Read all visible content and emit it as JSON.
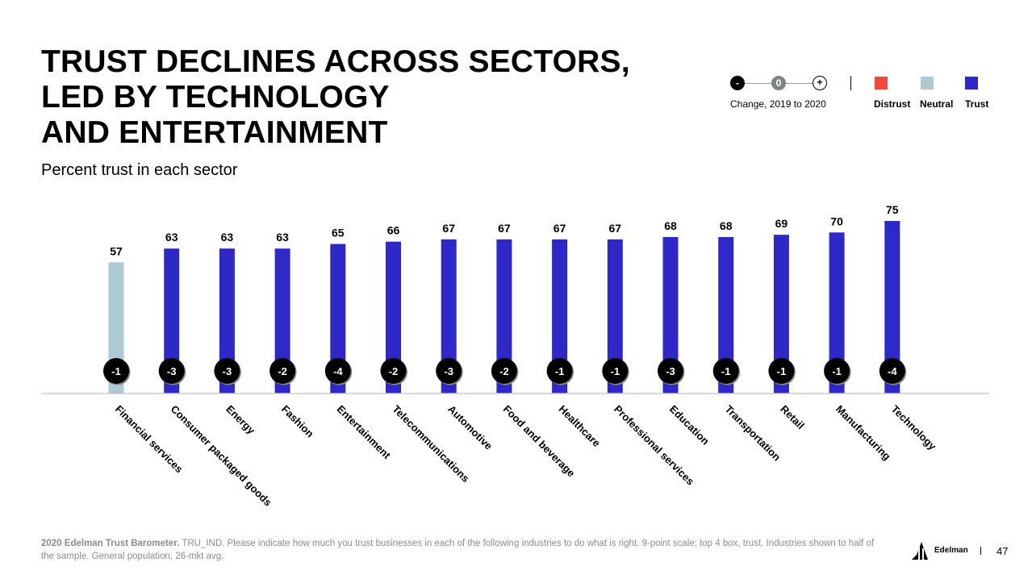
{
  "header": {
    "title_lines": [
      "TRUST DECLINES ACROSS SECTORS,",
      "LED BY TECHNOLOGY",
      "AND ENTERTAINMENT"
    ],
    "subtitle": "Percent trust in each sector"
  },
  "legend": {
    "change": {
      "neg": "-",
      "zero": "0",
      "pos": "+",
      "label": "Change, 2019 to 2020"
    },
    "trust": {
      "distrust": "Distrust",
      "neutral": "Neutral",
      "trust": "Trust"
    }
  },
  "colors": {
    "trust": "#2e28c8",
    "neutral": "#afc9d3",
    "distrust": "#f2493a",
    "change_neg": "#000000",
    "change_zero": "#7f8580",
    "axis": "#cccccc"
  },
  "chart_data": {
    "type": "bar",
    "title": "Percent trust in each sector",
    "categories": [
      "Financial services",
      "Consumer packaged goods",
      "Energy",
      "Fashion",
      "Entertainment",
      "Telecommunications",
      "Automotive",
      "Food and beverage",
      "Healthcare",
      "Professional services",
      "Education",
      "Transportation",
      "Retail",
      "Manufacturing",
      "Technology"
    ],
    "values": [
      57,
      63,
      63,
      63,
      65,
      66,
      67,
      67,
      67,
      67,
      68,
      68,
      69,
      70,
      75
    ],
    "levels": [
      "Neutral",
      "Trust",
      "Trust",
      "Trust",
      "Trust",
      "Trust",
      "Trust",
      "Trust",
      "Trust",
      "Trust",
      "Trust",
      "Trust",
      "Trust",
      "Trust",
      "Trust"
    ],
    "change_2019_to_2020": [
      "-1",
      "-3",
      "-3",
      "-2",
      "-4",
      "-2",
      "-3",
      "-2",
      "-1",
      "-1",
      "-3",
      "-1",
      "-1",
      "-1",
      "-4"
    ],
    "ylim": [
      0,
      75
    ],
    "xlabel": "",
    "ylabel": ""
  },
  "footer": {
    "source_bold": "2020 Edelman Trust Barometer.",
    "source_text": " TRU_IND. Please indicate how much you trust businesses in each of the following industries to do what is right. 9-point scale; top 4 box, trust. Industries shown to half of the sample. General population, 26-mkt avg.",
    "brand": "Edelman",
    "page": "47"
  }
}
